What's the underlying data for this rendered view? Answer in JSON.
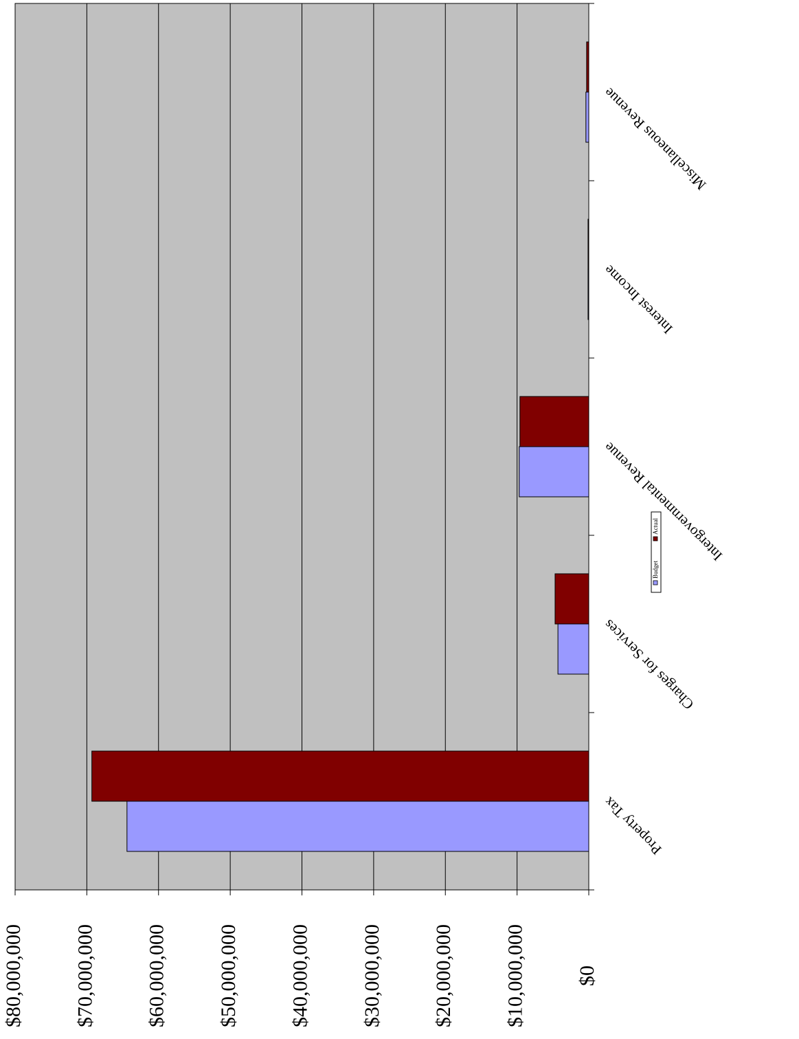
{
  "chart_data": {
    "type": "bar",
    "categories": [
      "Property Tax",
      "Charges for Services",
      "Intergovernmental Revenue",
      "Interest Income",
      "Miscellaneous Revenue"
    ],
    "series": [
      {
        "name": "Budget",
        "color": "#9999ff",
        "values": [
          64400000,
          4300000,
          9700000,
          100000,
          400000
        ]
      },
      {
        "name": "Actual",
        "color": "#800000",
        "values": [
          69300000,
          4700000,
          9600000,
          100000,
          300000
        ]
      }
    ],
    "ylim": [
      0,
      80000000
    ],
    "yticks": [
      {
        "value": 0,
        "label": "$0"
      },
      {
        "value": 10000000,
        "label": "$10,000,000"
      },
      {
        "value": 20000000,
        "label": "$20,000,000"
      },
      {
        "value": 30000000,
        "label": "$30,000,000"
      },
      {
        "value": 40000000,
        "label": "$40,000,000"
      },
      {
        "value": 50000000,
        "label": "$50,000,000"
      },
      {
        "value": 60000000,
        "label": "$60,000,000"
      },
      {
        "value": 70000000,
        "label": "$70,000,000"
      },
      {
        "value": 80000000,
        "label": "$80,000,000"
      }
    ],
    "grid": true
  }
}
